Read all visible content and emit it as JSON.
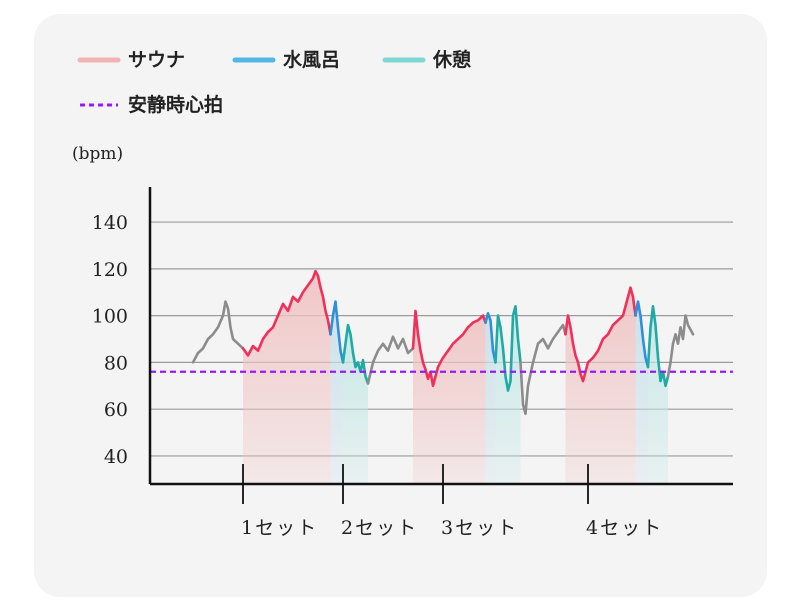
{
  "chart_data": {
    "type": "line",
    "unit_label": "(bpm)",
    "legend": [
      {
        "key": "sauna",
        "label": "サウナ",
        "color": "#f3b3b3",
        "style": "solid"
      },
      {
        "key": "water",
        "label": "水風呂",
        "color": "#52b7e3",
        "style": "solid"
      },
      {
        "key": "rest",
        "label": "休憩",
        "color": "#7ed6d2",
        "style": "solid"
      },
      {
        "key": "resting",
        "label": "安静時心拍",
        "color": "#9b17ff",
        "style": "dashed"
      }
    ],
    "ylim": [
      28,
      155
    ],
    "yticks": [
      40,
      60,
      80,
      100,
      120,
      140
    ],
    "grid": true,
    "resting_hr": 76,
    "sets": [
      "1セット",
      "2セット",
      "3セット",
      "4セット"
    ],
    "set_starts": [
      0.1,
      0.3,
      0.5,
      0.79
    ],
    "xlim": [
      -0.02,
      1.02
    ],
    "segment_colors": {
      "other": "#8c8c8c",
      "sauna": "#f0305a",
      "water": "#2e8fde",
      "rest": "#1faaa6"
    },
    "band_colors": {
      "sauna": "#f0c4c4",
      "water": "#c8e0ea",
      "rest": "#c5e8e6"
    },
    "segments": [
      {
        "phase": "other",
        "points": [
          [
            0.0,
            80
          ],
          [
            0.01,
            84
          ],
          [
            0.02,
            86
          ],
          [
            0.03,
            90
          ],
          [
            0.04,
            92
          ],
          [
            0.05,
            95
          ],
          [
            0.06,
            100
          ],
          [
            0.065,
            106
          ],
          [
            0.07,
            103
          ],
          [
            0.075,
            95
          ],
          [
            0.08,
            90
          ],
          [
            0.09,
            88
          ],
          [
            0.1,
            86
          ]
        ]
      },
      {
        "phase": "sauna",
        "points": [
          [
            0.1,
            86
          ],
          [
            0.11,
            83
          ],
          [
            0.12,
            87
          ],
          [
            0.13,
            85
          ],
          [
            0.14,
            90
          ],
          [
            0.15,
            93
          ],
          [
            0.16,
            95
          ],
          [
            0.17,
            100
          ],
          [
            0.18,
            105
          ],
          [
            0.19,
            102
          ],
          [
            0.2,
            108
          ],
          [
            0.21,
            106
          ],
          [
            0.22,
            110
          ],
          [
            0.23,
            113
          ],
          [
            0.24,
            116
          ],
          [
            0.245,
            119
          ],
          [
            0.25,
            117
          ],
          [
            0.255,
            112
          ],
          [
            0.26,
            108
          ],
          [
            0.265,
            102
          ],
          [
            0.27,
            98
          ],
          [
            0.275,
            92
          ]
        ]
      },
      {
        "phase": "water",
        "points": [
          [
            0.275,
            92
          ],
          [
            0.28,
            100
          ],
          [
            0.285,
            106
          ],
          [
            0.29,
            95
          ],
          [
            0.295,
            85
          ],
          [
            0.3,
            80
          ]
        ]
      },
      {
        "phase": "rest",
        "points": [
          [
            0.3,
            80
          ],
          [
            0.305,
            88
          ],
          [
            0.31,
            96
          ],
          [
            0.315,
            92
          ],
          [
            0.32,
            84
          ],
          [
            0.325,
            78
          ],
          [
            0.33,
            80
          ],
          [
            0.335,
            76
          ],
          [
            0.34,
            81
          ],
          [
            0.345,
            74
          ],
          [
            0.35,
            71
          ]
        ]
      },
      {
        "phase": "other",
        "points": [
          [
            0.35,
            71
          ],
          [
            0.36,
            80
          ],
          [
            0.37,
            85
          ],
          [
            0.38,
            88
          ],
          [
            0.39,
            85
          ],
          [
            0.4,
            91
          ],
          [
            0.41,
            86
          ],
          [
            0.42,
            90
          ],
          [
            0.43,
            84
          ],
          [
            0.44,
            86
          ]
        ]
      },
      {
        "phase": "sauna",
        "points": [
          [
            0.44,
            86
          ],
          [
            0.445,
            102
          ],
          [
            0.45,
            92
          ],
          [
            0.455,
            85
          ],
          [
            0.46,
            80
          ],
          [
            0.465,
            77
          ],
          [
            0.47,
            73
          ],
          [
            0.475,
            76
          ],
          [
            0.48,
            70
          ],
          [
            0.49,
            78
          ],
          [
            0.5,
            82
          ],
          [
            0.51,
            85
          ],
          [
            0.52,
            88
          ],
          [
            0.53,
            90
          ],
          [
            0.54,
            92
          ],
          [
            0.55,
            95
          ],
          [
            0.56,
            97
          ],
          [
            0.57,
            98
          ],
          [
            0.58,
            100
          ],
          [
            0.585,
            97
          ]
        ]
      },
      {
        "phase": "water",
        "points": [
          [
            0.585,
            97
          ],
          [
            0.59,
            101
          ],
          [
            0.595,
            98
          ],
          [
            0.6,
            85
          ],
          [
            0.605,
            80
          ]
        ]
      },
      {
        "phase": "rest",
        "points": [
          [
            0.605,
            80
          ],
          [
            0.61,
            100
          ],
          [
            0.615,
            95
          ],
          [
            0.62,
            86
          ],
          [
            0.625,
            74
          ],
          [
            0.63,
            68
          ],
          [
            0.635,
            72
          ],
          [
            0.64,
            100
          ],
          [
            0.645,
            104
          ],
          [
            0.65,
            90
          ],
          [
            0.655,
            80
          ]
        ]
      },
      {
        "phase": "other",
        "points": [
          [
            0.655,
            80
          ],
          [
            0.66,
            62
          ],
          [
            0.665,
            58
          ],
          [
            0.67,
            70
          ],
          [
            0.68,
            80
          ],
          [
            0.69,
            88
          ],
          [
            0.7,
            90
          ],
          [
            0.71,
            86
          ],
          [
            0.72,
            90
          ],
          [
            0.73,
            93
          ],
          [
            0.74,
            96
          ],
          [
            0.745,
            92
          ]
        ]
      },
      {
        "phase": "sauna",
        "points": [
          [
            0.745,
            92
          ],
          [
            0.75,
            100
          ],
          [
            0.755,
            95
          ],
          [
            0.76,
            88
          ],
          [
            0.765,
            83
          ],
          [
            0.77,
            80
          ],
          [
            0.775,
            75
          ],
          [
            0.78,
            72
          ],
          [
            0.79,
            80
          ],
          [
            0.8,
            82
          ],
          [
            0.81,
            85
          ],
          [
            0.82,
            90
          ],
          [
            0.83,
            92
          ],
          [
            0.84,
            96
          ],
          [
            0.85,
            98
          ],
          [
            0.86,
            100
          ],
          [
            0.87,
            108
          ],
          [
            0.875,
            112
          ],
          [
            0.88,
            108
          ],
          [
            0.885,
            100
          ]
        ]
      },
      {
        "phase": "water",
        "points": [
          [
            0.885,
            100
          ],
          [
            0.89,
            106
          ],
          [
            0.895,
            100
          ],
          [
            0.9,
            90
          ],
          [
            0.905,
            82
          ],
          [
            0.91,
            78
          ]
        ]
      },
      {
        "phase": "rest",
        "points": [
          [
            0.91,
            78
          ],
          [
            0.915,
            95
          ],
          [
            0.92,
            104
          ],
          [
            0.925,
            96
          ],
          [
            0.93,
            82
          ],
          [
            0.935,
            72
          ],
          [
            0.94,
            76
          ],
          [
            0.945,
            70
          ],
          [
            0.95,
            74
          ]
        ]
      },
      {
        "phase": "other",
        "points": [
          [
            0.95,
            74
          ],
          [
            0.955,
            80
          ],
          [
            0.96,
            88
          ],
          [
            0.965,
            92
          ],
          [
            0.97,
            88
          ],
          [
            0.975,
            95
          ],
          [
            0.98,
            90
          ],
          [
            0.985,
            100
          ],
          [
            0.99,
            96
          ],
          [
            1.0,
            92
          ]
        ]
      }
    ],
    "bands": [
      {
        "phase": "sauna",
        "from": 0.1,
        "to": 0.275
      },
      {
        "phase": "water",
        "from": 0.275,
        "to": 0.3
      },
      {
        "phase": "rest",
        "from": 0.3,
        "to": 0.35
      },
      {
        "phase": "sauna",
        "from": 0.44,
        "to": 0.585
      },
      {
        "phase": "water",
        "from": 0.585,
        "to": 0.605
      },
      {
        "phase": "rest",
        "from": 0.605,
        "to": 0.655
      },
      {
        "phase": "sauna",
        "from": 0.745,
        "to": 0.885
      },
      {
        "phase": "water",
        "from": 0.885,
        "to": 0.91
      },
      {
        "phase": "rest",
        "from": 0.91,
        "to": 0.95
      }
    ]
  }
}
